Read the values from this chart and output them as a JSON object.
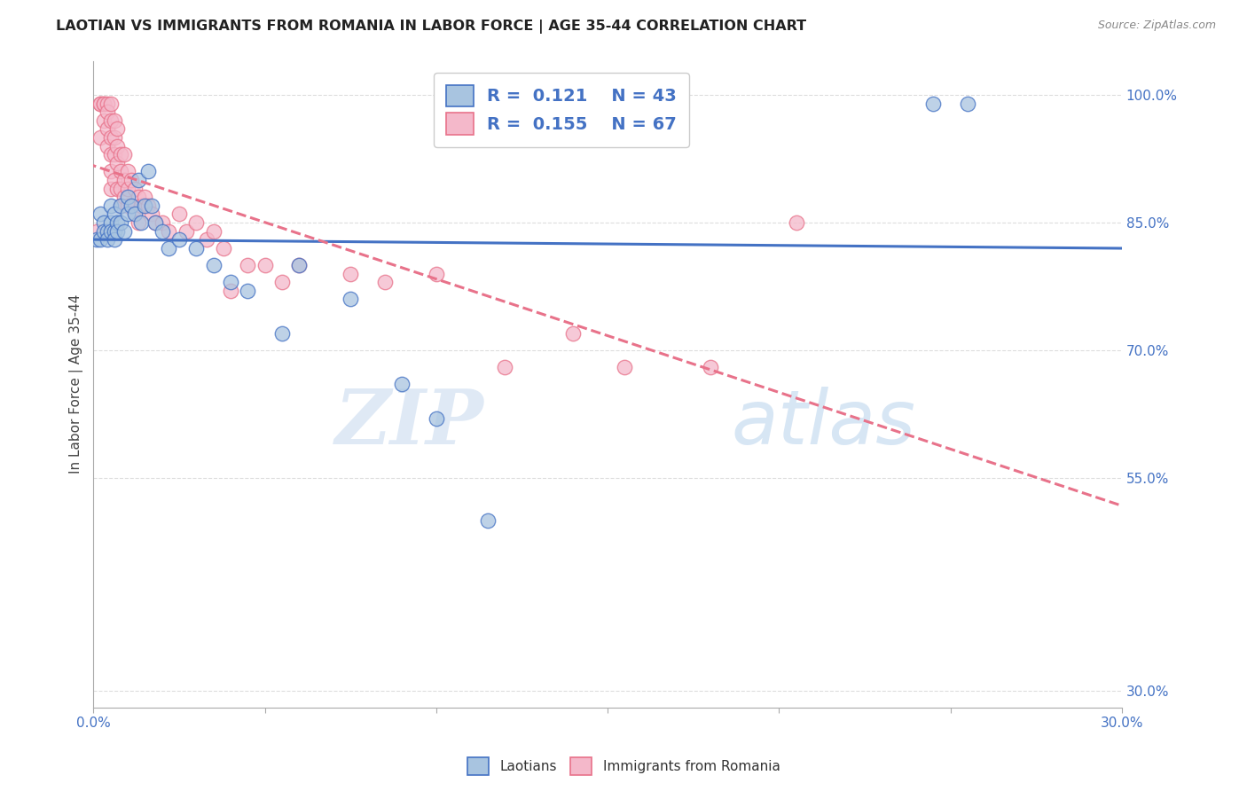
{
  "title": "LAOTIAN VS IMMIGRANTS FROM ROMANIA IN LABOR FORCE | AGE 35-44 CORRELATION CHART",
  "source": "Source: ZipAtlas.com",
  "ylabel": "In Labor Force | Age 35-44",
  "xlim": [
    0.0,
    0.3
  ],
  "ylim": [
    0.28,
    1.04
  ],
  "xticks": [
    0.0,
    0.05,
    0.1,
    0.15,
    0.2,
    0.25,
    0.3
  ],
  "xticklabels": [
    "0.0%",
    "",
    "",
    "",
    "",
    "",
    "30.0%"
  ],
  "ytick_positions": [
    0.3,
    0.55,
    0.7,
    0.85,
    1.0
  ],
  "ytick_labels": [
    "30.0%",
    "55.0%",
    "70.0%",
    "85.0%",
    "100.0%"
  ],
  "blue_color": "#a8c4e0",
  "pink_color": "#f4b8ca",
  "blue_edge": "#4472c4",
  "pink_edge": "#e8728a",
  "trend_blue": "#4472c4",
  "trend_pink": "#e8728a",
  "legend_R1": "0.121",
  "legend_N1": "43",
  "legend_R2": "0.155",
  "legend_N2": "67",
  "blue_scatter_x": [
    0.001,
    0.002,
    0.002,
    0.003,
    0.003,
    0.004,
    0.004,
    0.005,
    0.005,
    0.005,
    0.006,
    0.006,
    0.006,
    0.007,
    0.007,
    0.008,
    0.008,
    0.009,
    0.01,
    0.01,
    0.011,
    0.012,
    0.013,
    0.014,
    0.015,
    0.016,
    0.017,
    0.018,
    0.02,
    0.022,
    0.025,
    0.03,
    0.035,
    0.04,
    0.045,
    0.055,
    0.06,
    0.075,
    0.09,
    0.1,
    0.115,
    0.245,
    0.255
  ],
  "blue_scatter_y": [
    0.83,
    0.86,
    0.83,
    0.85,
    0.84,
    0.84,
    0.83,
    0.87,
    0.85,
    0.84,
    0.86,
    0.84,
    0.83,
    0.85,
    0.84,
    0.87,
    0.85,
    0.84,
    0.88,
    0.86,
    0.87,
    0.86,
    0.9,
    0.85,
    0.87,
    0.91,
    0.87,
    0.85,
    0.84,
    0.82,
    0.83,
    0.82,
    0.8,
    0.78,
    0.77,
    0.72,
    0.8,
    0.76,
    0.66,
    0.62,
    0.5,
    0.99,
    0.99
  ],
  "pink_scatter_x": [
    0.001,
    0.002,
    0.002,
    0.002,
    0.003,
    0.003,
    0.003,
    0.004,
    0.004,
    0.004,
    0.004,
    0.005,
    0.005,
    0.005,
    0.005,
    0.005,
    0.005,
    0.006,
    0.006,
    0.006,
    0.006,
    0.007,
    0.007,
    0.007,
    0.007,
    0.008,
    0.008,
    0.008,
    0.008,
    0.009,
    0.009,
    0.009,
    0.01,
    0.01,
    0.01,
    0.011,
    0.011,
    0.012,
    0.012,
    0.013,
    0.013,
    0.014,
    0.015,
    0.016,
    0.017,
    0.018,
    0.02,
    0.022,
    0.025,
    0.027,
    0.03,
    0.033,
    0.035,
    0.038,
    0.04,
    0.045,
    0.05,
    0.055,
    0.06,
    0.075,
    0.085,
    0.1,
    0.12,
    0.14,
    0.155,
    0.18,
    0.205
  ],
  "pink_scatter_y": [
    0.84,
    0.99,
    0.99,
    0.95,
    0.99,
    0.99,
    0.97,
    0.99,
    0.98,
    0.96,
    0.94,
    0.99,
    0.97,
    0.95,
    0.93,
    0.91,
    0.89,
    0.97,
    0.95,
    0.93,
    0.9,
    0.96,
    0.94,
    0.92,
    0.89,
    0.93,
    0.91,
    0.89,
    0.87,
    0.93,
    0.9,
    0.88,
    0.91,
    0.89,
    0.87,
    0.9,
    0.87,
    0.89,
    0.86,
    0.88,
    0.85,
    0.87,
    0.88,
    0.87,
    0.86,
    0.85,
    0.85,
    0.84,
    0.86,
    0.84,
    0.85,
    0.83,
    0.84,
    0.82,
    0.77,
    0.8,
    0.8,
    0.78,
    0.8,
    0.79,
    0.78,
    0.79,
    0.68,
    0.72,
    0.68,
    0.68,
    0.85
  ],
  "watermark_zip": "ZIP",
  "watermark_atlas": "atlas",
  "background_color": "#ffffff",
  "grid_color": "#dddddd",
  "title_color": "#222222",
  "axis_color": "#4472c4",
  "label_color": "#444444"
}
